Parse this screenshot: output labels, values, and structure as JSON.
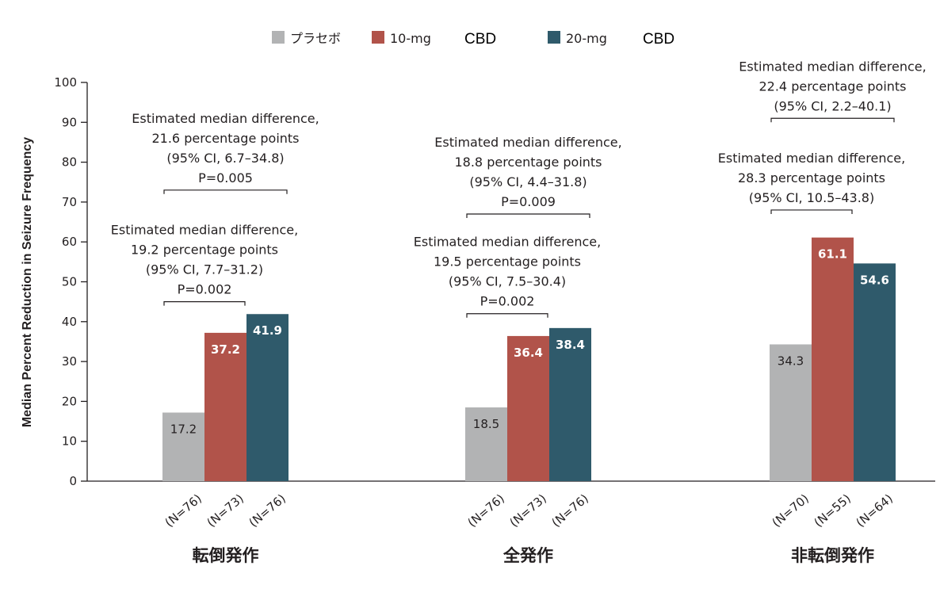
{
  "chart_data": {
    "type": "bar",
    "ylabel": "Median Percent Reduction in Seizure Frequency",
    "ylim": [
      0,
      100
    ],
    "yticks": [
      0,
      10,
      20,
      30,
      40,
      50,
      60,
      70,
      80,
      90,
      100
    ],
    "legend": {
      "placement": "top",
      "entries": [
        {
          "label": "プラセボ",
          "suffix": ""
        },
        {
          "label": "10-mg",
          "suffix": "CBD"
        },
        {
          "label": "20-mg",
          "suffix": "CBD"
        }
      ]
    },
    "series_colors": [
      "#b2b3b4",
      "#b1534a",
      "#2f5a6b"
    ],
    "groups": [
      {
        "label": "転倒発作",
        "values": [
          17.2,
          37.2,
          41.9
        ],
        "value_labels": [
          "17.2",
          "37.2",
          "41.9"
        ],
        "n_labels": [
          "(N=76)",
          "(N=73)",
          "(N=76)"
        ],
        "comparisons": [
          {
            "from": 0,
            "to": 2,
            "bracket_y": 73,
            "lines": [
              "Estimated median difference,",
              "21.6 percentage points",
              "(95% CI, 6.7–34.8)",
              "P=0.005"
            ]
          },
          {
            "from": 0,
            "to": 1,
            "bracket_y": 45,
            "lines": [
              "Estimated median difference,",
              "19.2 percentage points",
              "(95% CI, 7.7–31.2)",
              "P=0.002"
            ]
          }
        ]
      },
      {
        "label": "全発作",
        "values": [
          18.5,
          36.4,
          38.4
        ],
        "value_labels": [
          "18.5",
          "36.4",
          "38.4"
        ],
        "n_labels": [
          "(N=76)",
          "(N=73)",
          "(N=76)"
        ],
        "comparisons": [
          {
            "from": 0,
            "to": 2,
            "bracket_y": 67,
            "lines": [
              "Estimated median difference,",
              "18.8 percentage points",
              "(95% CI, 4.4–31.8)",
              "P=0.009"
            ]
          },
          {
            "from": 0,
            "to": 1,
            "bracket_y": 42,
            "lines": [
              "Estimated median difference,",
              "19.5 percentage points",
              "(95% CI, 7.5–30.4)",
              "P=0.002"
            ]
          }
        ]
      },
      {
        "label": "非転倒発作",
        "values": [
          34.3,
          61.1,
          54.6
        ],
        "value_labels": [
          "34.3",
          "61.1",
          "54.6"
        ],
        "n_labels": [
          "(N=70)",
          "(N=55)",
          "(N=64)"
        ],
        "comparisons": [
          {
            "from": 0,
            "to": 2,
            "bracket_y": 91,
            "lines": [
              "Estimated median difference,",
              "22.4 percentage points",
              "(95% CI, 2.2–40.1)"
            ]
          },
          {
            "from": 0,
            "to": 1,
            "bracket_y": 68,
            "lines": [
              "Estimated median difference,",
              "28.3 percentage points",
              "(95% CI, 10.5–43.8)"
            ]
          }
        ]
      }
    ]
  }
}
